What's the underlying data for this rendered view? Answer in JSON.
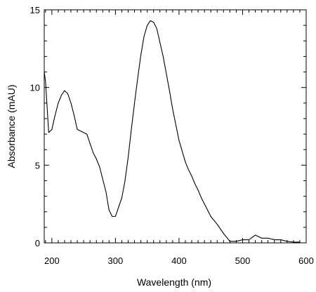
{
  "chart_data": {
    "type": "line",
    "title": "",
    "xlabel": "Wavelength (nm)",
    "ylabel": "Absorbance (mAU)",
    "xlim": [
      188,
      600
    ],
    "ylim": [
      0,
      15
    ],
    "x_ticks": [
      200,
      300,
      400,
      500,
      600
    ],
    "y_ticks": [
      0,
      5,
      10,
      15
    ],
    "x_tick_labels": [
      "200",
      "300",
      "400",
      "500",
      "600"
    ],
    "y_tick_labels": [
      "0",
      "5",
      "10",
      "15"
    ],
    "grid": false,
    "legend": "none",
    "line_color": "#000000",
    "series": [
      {
        "x": [
          188,
          190,
          195,
          200,
          205,
          210,
          215,
          220,
          225,
          230,
          235,
          240,
          245,
          250,
          255,
          260,
          265,
          270,
          275,
          280,
          285,
          290,
          295,
          300,
          305,
          310,
          315,
          320,
          325,
          330,
          335,
          340,
          345,
          350,
          355,
          360,
          365,
          370,
          375,
          380,
          385,
          390,
          395,
          400,
          405,
          410,
          415,
          420,
          425,
          430,
          435,
          440,
          450,
          460,
          470,
          480,
          490,
          500,
          510,
          520,
          530,
          540,
          550,
          560,
          570,
          580,
          590
        ],
        "y": [
          11.0,
          10.4,
          7.1,
          7.3,
          8.2,
          9.0,
          9.5,
          9.8,
          9.6,
          9.0,
          8.2,
          7.3,
          7.2,
          7.1,
          7.0,
          6.4,
          5.8,
          5.4,
          4.9,
          4.1,
          3.3,
          2.1,
          1.7,
          1.7,
          2.3,
          2.9,
          4.0,
          5.5,
          7.3,
          9.0,
          10.6,
          12.1,
          13.3,
          14.0,
          14.3,
          14.2,
          13.8,
          12.9,
          12.0,
          10.9,
          9.8,
          8.6,
          7.6,
          6.6,
          5.9,
          5.2,
          4.7,
          4.3,
          3.8,
          3.4,
          2.9,
          2.5,
          1.7,
          1.2,
          0.6,
          0.1,
          0.1,
          0.2,
          0.2,
          0.5,
          0.3,
          0.3,
          0.2,
          0.2,
          0.1,
          0.05,
          0.05
        ]
      }
    ]
  }
}
